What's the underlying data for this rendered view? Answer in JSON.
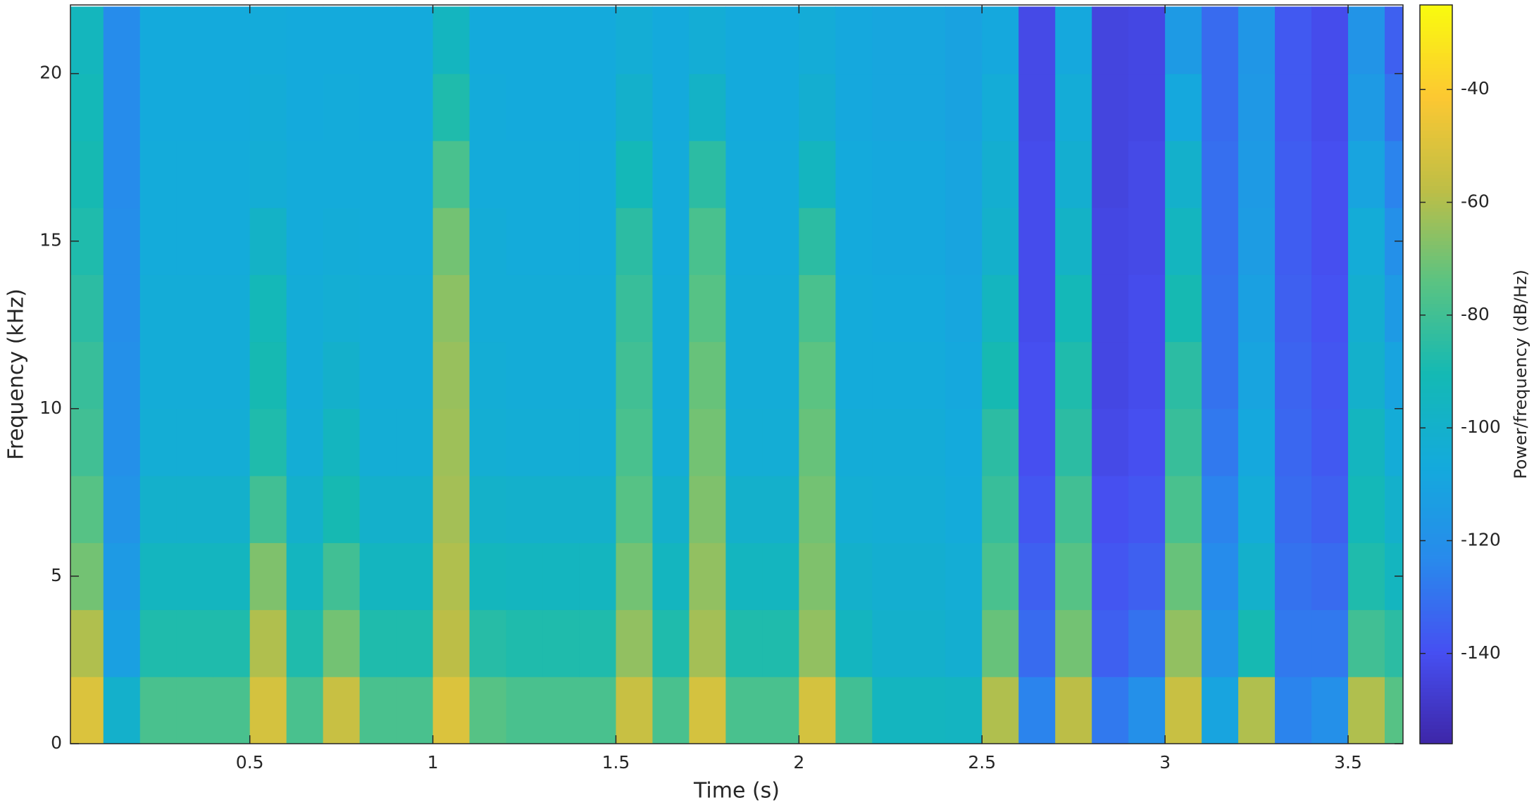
{
  "chart_data": {
    "type": "heatmap",
    "xlabel": "Time (s)",
    "ylabel": "Frequency (kHz)",
    "colorbar_label": "Power/frequency (dB/Hz)",
    "colormap": "parula",
    "x": [
      0.05,
      0.15,
      0.25,
      0.35,
      0.45,
      0.55,
      0.65,
      0.75,
      0.85,
      0.95,
      1.05,
      1.15,
      1.25,
      1.35,
      1.45,
      1.55,
      1.65,
      1.75,
      1.85,
      1.95,
      2.05,
      2.15,
      2.25,
      2.35,
      2.45,
      2.55,
      2.65,
      2.75,
      2.85,
      2.95,
      3.05,
      3.15,
      3.25,
      3.35,
      3.45,
      3.55,
      3.65
    ],
    "y": [
      1,
      3,
      5,
      7,
      9,
      11,
      13,
      15,
      17,
      19,
      21
    ],
    "z": [
      [
        -50,
        -100,
        -78,
        -78,
        -78,
        -52,
        -78,
        -55,
        -78,
        -78,
        -50,
        -75,
        -78,
        -78,
        -78,
        -55,
        -78,
        -52,
        -78,
        -78,
        -52,
        -80,
        -95,
        -95,
        -96,
        -60,
        -125,
        -58,
        -128,
        -120,
        -55,
        -110,
        -60,
        -125,
        -120,
        -60,
        -75
      ],
      [
        -60,
        -112,
        -88,
        -88,
        -88,
        -60,
        -88,
        -70,
        -88,
        -88,
        -58,
        -86,
        -88,
        -88,
        -88,
        -65,
        -88,
        -62,
        -88,
        -88,
        -65,
        -95,
        -100,
        -100,
        -102,
        -72,
        -132,
        -70,
        -135,
        -130,
        -65,
        -118,
        -90,
        -128,
        -128,
        -80,
        -85
      ],
      [
        -70,
        -115,
        -95,
        -95,
        -95,
        -68,
        -95,
        -80,
        -95,
        -95,
        -60,
        -94,
        -95,
        -95,
        -95,
        -70,
        -95,
        -65,
        -95,
        -95,
        -68,
        -100,
        -102,
        -102,
        -104,
        -78,
        -135,
        -75,
        -138,
        -135,
        -72,
        -122,
        -100,
        -130,
        -132,
        -88,
        -95
      ],
      [
        -75,
        -118,
        -100,
        -100,
        -100,
        -80,
        -100,
        -90,
        -100,
        -100,
        -62,
        -99,
        -100,
        -100,
        -100,
        -75,
        -100,
        -68,
        -100,
        -100,
        -70,
        -103,
        -104,
        -104,
        -106,
        -82,
        -138,
        -80,
        -140,
        -138,
        -78,
        -125,
        -105,
        -132,
        -135,
        -92,
        -100
      ],
      [
        -80,
        -120,
        -104,
        -104,
        -104,
        -88,
        -104,
        -95,
        -104,
        -104,
        -63,
        -103,
        -104,
        -104,
        -104,
        -78,
        -104,
        -70,
        -104,
        -104,
        -72,
        -105,
        -105,
        -105,
        -107,
        -85,
        -140,
        -85,
        -142,
        -140,
        -82,
        -128,
        -108,
        -133,
        -137,
        -95,
        -105
      ],
      [
        -82,
        -120,
        -105,
        -105,
        -105,
        -90,
        -105,
        -100,
        -105,
        -105,
        -64,
        -104,
        -105,
        -105,
        -105,
        -80,
        -105,
        -72,
        -105,
        -105,
        -74,
        -106,
        -106,
        -106,
        -108,
        -90,
        -140,
        -88,
        -143,
        -141,
        -85,
        -130,
        -110,
        -134,
        -138,
        -100,
        -110
      ],
      [
        -85,
        -121,
        -105,
        -105,
        -105,
        -92,
        -105,
        -103,
        -105,
        -105,
        -66,
        -105,
        -105,
        -105,
        -105,
        -82,
        -105,
        -75,
        -105,
        -105,
        -78,
        -106,
        -107,
        -107,
        -109,
        -95,
        -141,
        -92,
        -143,
        -141,
        -90,
        -130,
        -112,
        -135,
        -139,
        -102,
        -115
      ],
      [
        -88,
        -121,
        -106,
        -106,
        -106,
        -98,
        -106,
        -105,
        -106,
        -106,
        -70,
        -105,
        -106,
        -106,
        -106,
        -85,
        -106,
        -78,
        -106,
        -106,
        -85,
        -107,
        -108,
        -108,
        -110,
        -100,
        -141,
        -98,
        -143,
        -142,
        -95,
        -131,
        -114,
        -136,
        -140,
        -105,
        -120
      ],
      [
        -90,
        -122,
        -106,
        -106,
        -106,
        -104,
        -106,
        -106,
        -106,
        -106,
        -78,
        -106,
        -106,
        -106,
        -106,
        -92,
        -106,
        -85,
        -106,
        -106,
        -95,
        -107,
        -108,
        -108,
        -110,
        -102,
        -141,
        -102,
        -144,
        -142,
        -100,
        -131,
        -115,
        -136,
        -140,
        -110,
        -125
      ],
      [
        -92,
        -122,
        -107,
        -107,
        -107,
        -105,
        -107,
        -106,
        -107,
        -107,
        -88,
        -106,
        -107,
        -107,
        -107,
        -100,
        -107,
        -98,
        -107,
        -107,
        -102,
        -108,
        -109,
        -109,
        -111,
        -105,
        -142,
        -105,
        -144,
        -143,
        -108,
        -132,
        -116,
        -137,
        -141,
        -115,
        -130
      ],
      [
        -94,
        -122,
        -107,
        -107,
        -107,
        -106,
        -107,
        -107,
        -107,
        -107,
        -95,
        -107,
        -107,
        -107,
        -107,
        -104,
        -107,
        -104,
        -107,
        -107,
        -105,
        -108,
        -109,
        -109,
        -111,
        -108,
        -142,
        -108,
        -144,
        -143,
        -115,
        -132,
        -117,
        -137,
        -141,
        -118,
        -135
      ]
    ],
    "xlim": [
      0.01,
      3.65
    ],
    "ylim": [
      0,
      22.05
    ],
    "clim": [
      -156,
      -25
    ],
    "xticks": [
      0.5,
      1,
      1.5,
      2,
      2.5,
      3,
      3.5
    ],
    "yticks": [
      0,
      5,
      10,
      15,
      20
    ],
    "cticks": [
      -140,
      -120,
      -100,
      -80,
      -60,
      -40
    ]
  }
}
